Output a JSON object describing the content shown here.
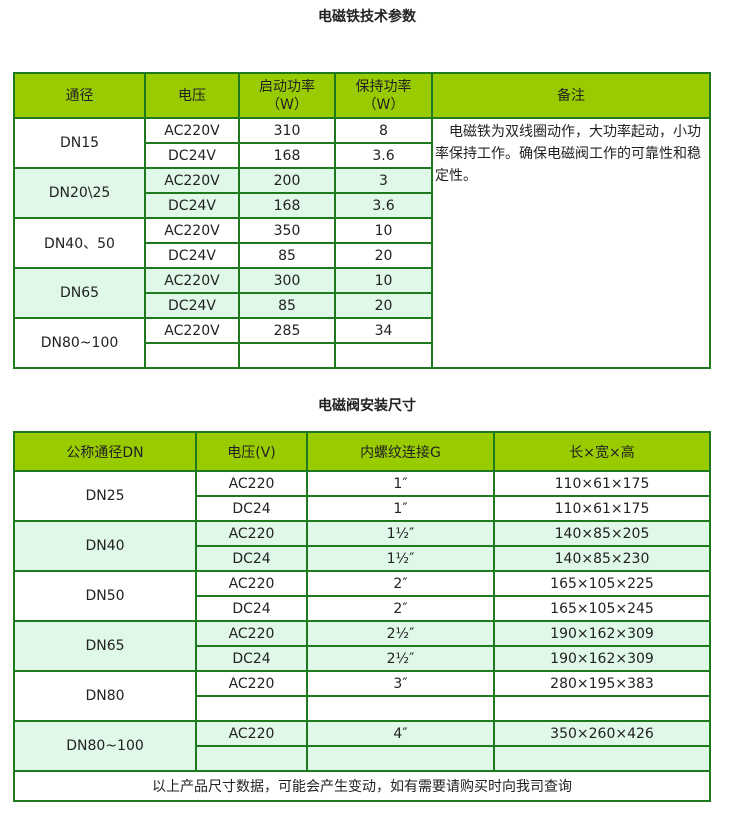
{
  "t1": {
    "title": "电磁铁技术参数",
    "headers": [
      "通径",
      "电压",
      "启动功率（W）",
      "保持功率（W）",
      "备注"
    ],
    "note": "　电磁铁为双线圈动作，大功率起动，小功率保持工作。确保电磁阀工作的可靠性和稳定性。",
    "groups": [
      {
        "dn": "DN15",
        "rows": [
          [
            "AC220V",
            "310",
            "8"
          ],
          [
            "DC24V",
            "168",
            "3.6"
          ]
        ]
      },
      {
        "dn": "DN20\\25",
        "rows": [
          [
            "AC220V",
            "200",
            "3"
          ],
          [
            "DC24V",
            "168",
            "3.6"
          ]
        ]
      },
      {
        "dn": "DN40、50",
        "rows": [
          [
            "AC220V",
            "350",
            "10"
          ],
          [
            "DC24V",
            "85",
            "20"
          ]
        ]
      },
      {
        "dn": "DN65",
        "rows": [
          [
            "AC220V",
            "300",
            "10"
          ],
          [
            "DC24V",
            "85",
            "20"
          ]
        ]
      },
      {
        "dn": "DN80~100",
        "rows": [
          [
            "AC220V",
            "285",
            "34"
          ],
          [
            "",
            "",
            ""
          ]
        ]
      }
    ]
  },
  "t2": {
    "title": "电磁阀安装尺寸",
    "headers": [
      "公称通径DN",
      "电压(V)",
      "内螺纹连接G",
      "长×宽×高"
    ],
    "groups": [
      {
        "dn": "DN25",
        "rows": [
          [
            "AC220",
            "1″",
            "110×61×175"
          ],
          [
            "DC24",
            "1″",
            "110×61×175"
          ]
        ]
      },
      {
        "dn": "DN40",
        "rows": [
          [
            "AC220",
            "1½″",
            "140×85×205"
          ],
          [
            "DC24",
            "1½″",
            "140×85×230"
          ]
        ]
      },
      {
        "dn": "DN50",
        "rows": [
          [
            "AC220",
            "2″",
            "165×105×225"
          ],
          [
            "DC24",
            "2″",
            "165×105×245"
          ]
        ]
      },
      {
        "dn": "DN65",
        "rows": [
          [
            "AC220",
            "2½″",
            "190×162×309"
          ],
          [
            "DC24",
            "2½″",
            "190×162×309"
          ]
        ]
      },
      {
        "dn": "DN80",
        "rows": [
          [
            "AC220",
            "3″",
            "280×195×383"
          ],
          [
            "",
            "",
            ""
          ]
        ]
      },
      {
        "dn": "DN80~100",
        "rows": [
          [
            "AC220",
            "4″",
            "350×260×426"
          ],
          [
            "",
            "",
            ""
          ]
        ]
      }
    ],
    "footer": "以上产品尺寸数据，可能会产生变动，如有需要请购买时向我司查询"
  }
}
